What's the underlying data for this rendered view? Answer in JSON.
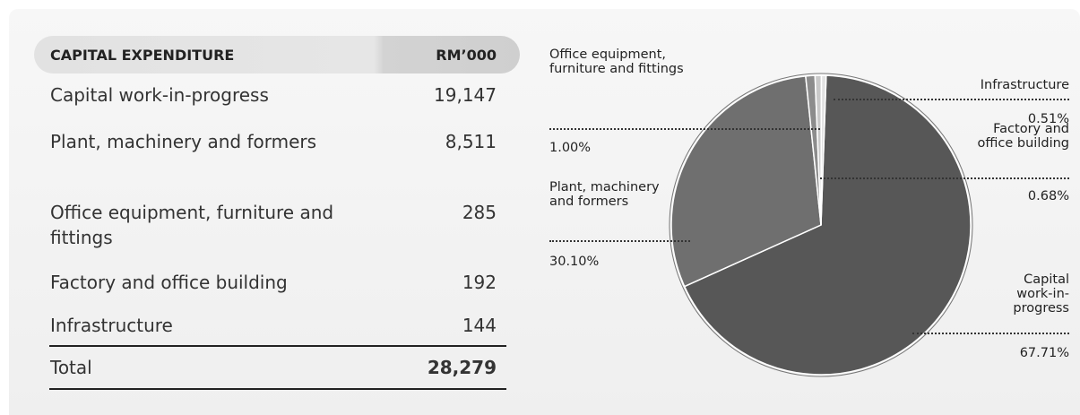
{
  "table": {
    "header": [
      "CAPITAL EXPENDITURE",
      "RM’000"
    ],
    "rows": [
      [
        "Capital work-in-progress",
        "19,147"
      ],
      [
        "Plant, machinery and formers",
        "8,511"
      ],
      [
        "Office equipment, furniture and fittings",
        "285"
      ],
      [
        "Factory and office building",
        "192"
      ],
      [
        "Infrastructure",
        "144"
      ]
    ],
    "total": [
      "Total",
      "28,279"
    ]
  },
  "chart_data": {
    "type": "pie",
    "categories": [
      "Capital work-in-progress",
      "Plant, machinery and formers",
      "Office equipment, furniture and fittings",
      "Factory and office building",
      "Infrastructure"
    ],
    "values": [
      67.71,
      30.1,
      1,
      0.68,
      0.51
    ],
    "value_labels": [
      "67.71%",
      "30.10%",
      "1.00%",
      "0.68%",
      "0.51%"
    ],
    "colors": [
      "#575757",
      "#6f6f6f",
      "#8c8c8c",
      "#c9c9c9",
      "#e2e2e2"
    ]
  }
}
